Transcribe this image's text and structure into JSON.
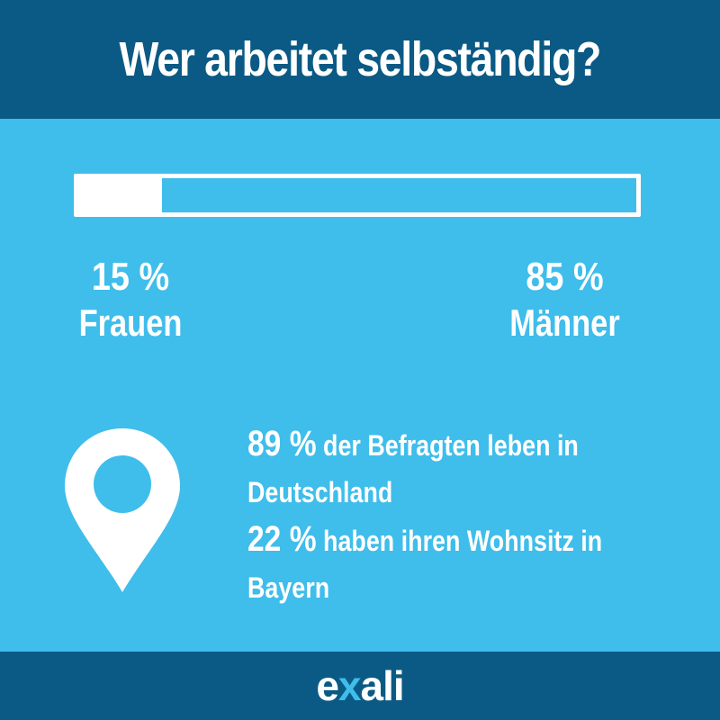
{
  "header": {
    "title": "Wer arbeitet selbständig?"
  },
  "gender_bar": {
    "women_share": 0.15,
    "men_share": 0.85
  },
  "stats": {
    "women": {
      "percent": "15 %",
      "label": "Frauen"
    },
    "men": {
      "percent": "85 %",
      "label": "Männer"
    }
  },
  "location": {
    "icon": "map-pin-icon",
    "line1": {
      "percent": "89 %",
      "text": " der Befragten leben in Deutschland"
    },
    "line2": {
      "percent": "22 %",
      "text": " haben ihren Wohnsitz in Bayern"
    }
  },
  "footer": {
    "logo_pre": "e",
    "logo_x": "x",
    "logo_post": "ali"
  },
  "colors": {
    "header_bg": "#0b5a85",
    "main_bg": "#3fbdeb",
    "text": "#ffffff",
    "logo_accent": "#3fbdeb"
  }
}
